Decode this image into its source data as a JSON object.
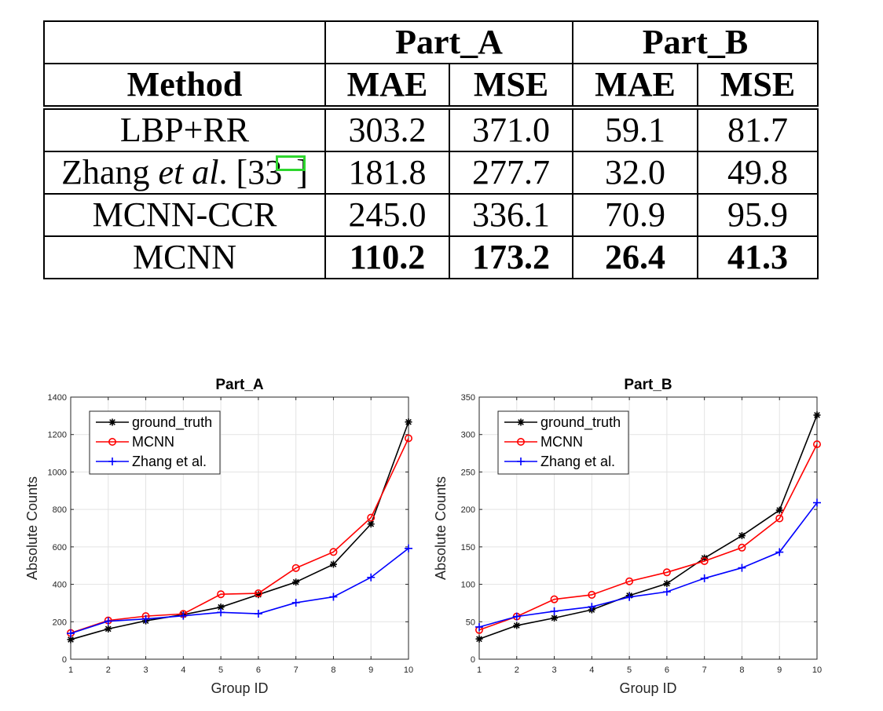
{
  "table": {
    "header_groups": [
      "Part_A",
      "Part_B"
    ],
    "method_header": "Method",
    "metric_headers": [
      "MAE",
      "MSE",
      "MAE",
      "MSE"
    ],
    "rows": [
      {
        "method": "LBP+RR",
        "values": [
          "303.2",
          "371.0",
          "59.1",
          "81.7"
        ]
      },
      {
        "method_prefix": "Zhang ",
        "method_italic": "et al",
        "method_suffix": ". [",
        "method_ref": "33",
        "method_close": "]",
        "values": [
          "181.8",
          "277.7",
          "32.0",
          "49.8"
        ]
      },
      {
        "method": "MCNN-CCR",
        "values": [
          "245.0",
          "336.1",
          "70.9",
          "95.9"
        ]
      },
      {
        "method": "MCNN",
        "values": [
          "110.2",
          "173.2",
          "26.4",
          "41.3"
        ]
      }
    ],
    "highlight_color": "#2ed62e"
  },
  "chart_data": [
    {
      "type": "line",
      "title": "Part_A",
      "xlabel": "Group ID",
      "ylabel": "Absolute Counts",
      "x": [
        1,
        2,
        3,
        4,
        5,
        6,
        7,
        8,
        9,
        10
      ],
      "xlim": [
        1,
        10
      ],
      "ylim": [
        0,
        1400
      ],
      "yticks": [
        0,
        200,
        400,
        600,
        800,
        1000,
        1200,
        1400
      ],
      "grid": true,
      "legend": "top-left",
      "series": [
        {
          "name": "ground_truth",
          "color": "#000000",
          "marker": "asterisk",
          "values": [
            105,
            162,
            205,
            238,
            278,
            345,
            412,
            507,
            722,
            1267
          ]
        },
        {
          "name": "MCNN",
          "color": "#ff0000",
          "marker": "circle",
          "values": [
            140,
            207,
            230,
            242,
            347,
            352,
            487,
            573,
            756,
            1180
          ]
        },
        {
          "name": "Zhang et al.",
          "color": "#0000ff",
          "marker": "plus",
          "values": [
            138,
            203,
            215,
            232,
            250,
            243,
            302,
            333,
            437,
            592
          ]
        }
      ]
    },
    {
      "type": "line",
      "title": "Part_B",
      "xlabel": "Group ID",
      "ylabel": "Absolute Counts",
      "x": [
        1,
        2,
        3,
        4,
        5,
        6,
        7,
        8,
        9,
        10
      ],
      "xlim": [
        1,
        10
      ],
      "ylim": [
        0,
        350
      ],
      "yticks": [
        0,
        50,
        100,
        150,
        200,
        250,
        300,
        350
      ],
      "grid": true,
      "legend": "top-left",
      "series": [
        {
          "name": "ground_truth",
          "color": "#000000",
          "marker": "asterisk",
          "values": [
            27,
            45,
            55,
            66,
            85,
            101,
            135,
            165,
            199,
            326
          ]
        },
        {
          "name": "MCNN",
          "color": "#ff0000",
          "marker": "circle",
          "values": [
            39,
            57,
            80,
            86,
            104,
            116,
            131,
            149,
            188,
            287
          ]
        },
        {
          "name": "Zhang et al.",
          "color": "#0000ff",
          "marker": "plus",
          "values": [
            43,
            57,
            64,
            70,
            83,
            90,
            108,
            122,
            143,
            209
          ]
        }
      ]
    }
  ]
}
